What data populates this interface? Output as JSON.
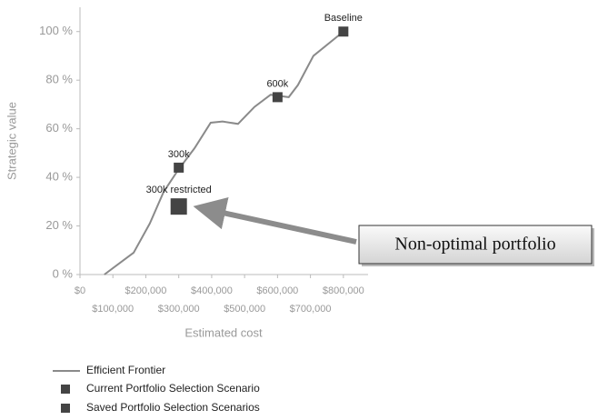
{
  "chart_data": {
    "type": "line",
    "x_label": "Estimated cost",
    "y_label": "Strategic value",
    "xlim": [
      0,
      875000
    ],
    "ylim": [
      0,
      110
    ],
    "xticks": [
      {
        "value": 0,
        "label": "$0"
      },
      {
        "value": 100000,
        "label": "$100,000"
      },
      {
        "value": 200000,
        "label": "$200,000"
      },
      {
        "value": 300000,
        "label": "$300,000"
      },
      {
        "value": 400000,
        "label": "$400,000"
      },
      {
        "value": 500000,
        "label": "$500,000"
      },
      {
        "value": 600000,
        "label": "$600,000"
      },
      {
        "value": 700000,
        "label": "$700,000"
      },
      {
        "value": 800000,
        "label": "$800,000"
      }
    ],
    "yticks": [
      {
        "value": 0,
        "label": "0 %"
      },
      {
        "value": 20,
        "label": "20 %"
      },
      {
        "value": 40,
        "label": "40 %"
      },
      {
        "value": 60,
        "label": "60 %"
      },
      {
        "value": 80,
        "label": "80 %"
      },
      {
        "value": 100,
        "label": "100 %"
      }
    ],
    "series": [
      {
        "name": "Efficient Frontier",
        "type": "line",
        "color": "#8a8a8a",
        "x": [
          74000,
          163000,
          212000,
          254000,
          298000,
          348000,
          397000,
          433000,
          480000,
          530000,
          579000,
          634000,
          662000,
          709000,
          800000
        ],
        "values": [
          0,
          9,
          21,
          34,
          43,
          52,
          62.5,
          63,
          62,
          69,
          74,
          73,
          78,
          90,
          100
        ]
      },
      {
        "name": "Current Portfolio Selection Scenario",
        "type": "scatter",
        "color": "#444444",
        "x": [
          800000,
          600000,
          300000
        ],
        "values": [
          100,
          73,
          44
        ],
        "point_labels": [
          "Baseline",
          "600k",
          "300k"
        ]
      },
      {
        "name": "Saved Portfolio Selection Scenarios",
        "type": "scatter",
        "color": "#444444",
        "x": [
          300000
        ],
        "values": [
          28
        ],
        "point_labels": [
          "300k restricted"
        ]
      }
    ],
    "annotation": "Non-optimal portfolio"
  }
}
